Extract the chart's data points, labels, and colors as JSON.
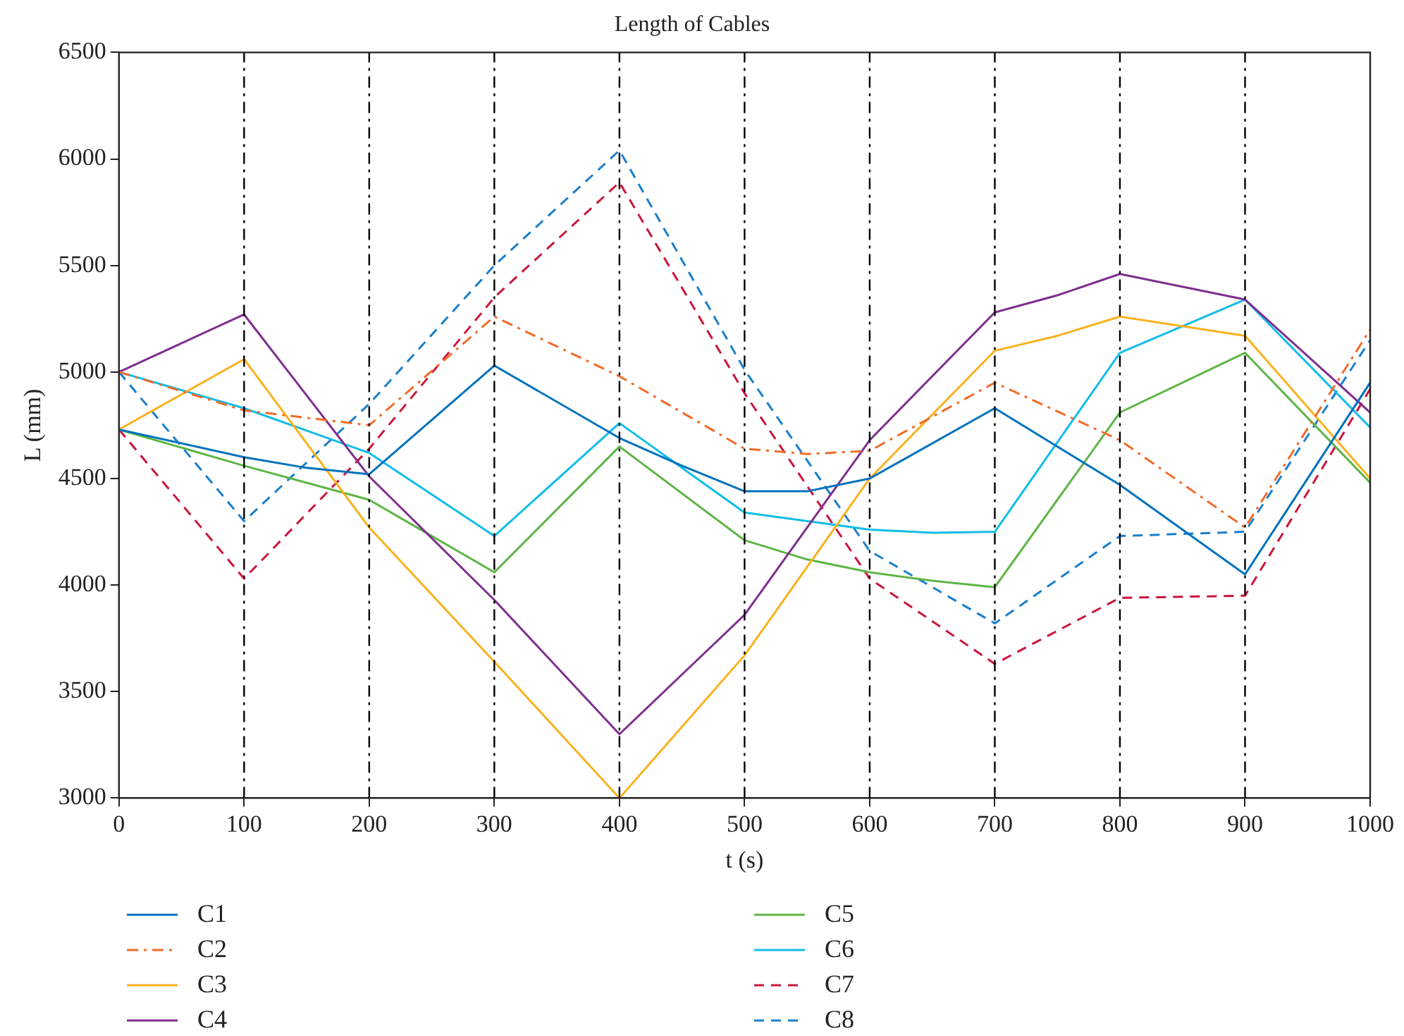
{
  "chart_data": {
    "type": "line",
    "title": "Length of Cables",
    "xlabel": "t (s)",
    "ylabel": "L (mm)",
    "xlim": [
      0,
      1000
    ],
    "xticks": [
      0,
      100,
      200,
      300,
      400,
      500,
      600,
      700,
      800,
      900,
      1000
    ],
    "ylim": [
      3000,
      6500
    ],
    "yticks": [
      3000,
      3500,
      4000,
      4500,
      5000,
      5500,
      6000,
      6500
    ],
    "grid": false,
    "legend": "bottom",
    "marker": "none",
    "ref_lines": [
      {
        "axis": "x",
        "value": 100,
        "color": "#000000",
        "line_style": "dashdot"
      },
      {
        "axis": "x",
        "value": 200,
        "color": "#000000",
        "line_style": "dashdot"
      },
      {
        "axis": "x",
        "value": 300,
        "color": "#000000",
        "line_style": "dashdot"
      },
      {
        "axis": "x",
        "value": 400,
        "color": "#000000",
        "line_style": "dashdot"
      },
      {
        "axis": "x",
        "value": 500,
        "color": "#000000",
        "line_style": "dashdot"
      },
      {
        "axis": "x",
        "value": 600,
        "color": "#000000",
        "line_style": "dashdot"
      },
      {
        "axis": "x",
        "value": 700,
        "color": "#000000",
        "line_style": "dashdot"
      },
      {
        "axis": "x",
        "value": 800,
        "color": "#000000",
        "line_style": "dashdot"
      },
      {
        "axis": "x",
        "value": 900,
        "color": "#000000",
        "line_style": "dashdot"
      }
    ],
    "series": [
      {
        "name": "C1",
        "color": "#0072bd",
        "line_style": "solid",
        "x": [
          0,
          100,
          150,
          200,
          300,
          400,
          450,
          500,
          550,
          600,
          700,
          800,
          900,
          1000
        ],
        "values": [
          4730,
          4600,
          4550,
          4520,
          5030,
          4690,
          4560,
          4440,
          4440,
          4500,
          4830,
          4470,
          4050,
          4950
        ]
      },
      {
        "name": "C2",
        "color": "#f26b2a",
        "line_style": "dashdot",
        "x": [
          0,
          100,
          200,
          300,
          400,
          500,
          550,
          600,
          700,
          800,
          900,
          1000
        ],
        "values": [
          5000,
          4820,
          4750,
          5260,
          4980,
          4640,
          4615,
          4630,
          4950,
          4680,
          4270,
          5200
        ]
      },
      {
        "name": "C3",
        "color": "#f9b21f",
        "line_style": "solid",
        "x": [
          0,
          100,
          200,
          300,
          400,
          500,
          600,
          700,
          750,
          800,
          900,
          1000
        ],
        "values": [
          4730,
          5060,
          4270,
          3640,
          3000,
          3670,
          4500,
          5100,
          5170,
          5260,
          5170,
          4500
        ]
      },
      {
        "name": "C4",
        "color": "#7e2f8e",
        "line_style": "solid",
        "x": [
          0,
          100,
          200,
          300,
          400,
          500,
          600,
          700,
          750,
          800,
          900,
          1000
        ],
        "values": [
          5000,
          5270,
          4510,
          3930,
          3300,
          3860,
          4680,
          5280,
          5360,
          5460,
          5340,
          4810
        ]
      },
      {
        "name": "C5",
        "color": "#5cb545",
        "line_style": "solid",
        "x": [
          0,
          100,
          200,
          250,
          300,
          400,
          500,
          550,
          600,
          650,
          700,
          800,
          900,
          1000
        ],
        "values": [
          4730,
          4560,
          4400,
          4230,
          4060,
          4650,
          4210,
          4120,
          4060,
          4020,
          3990,
          4810,
          5090,
          4480
        ]
      },
      {
        "name": "C6",
        "color": "#12bde8",
        "line_style": "solid",
        "x": [
          0,
          100,
          200,
          300,
          400,
          500,
          600,
          650,
          700,
          800,
          900,
          1000
        ],
        "values": [
          5000,
          4830,
          4620,
          4230,
          4760,
          4340,
          4260,
          4245,
          4250,
          5090,
          5340,
          4740
        ]
      },
      {
        "name": "C7",
        "color": "#c8163c",
        "line_style": "dashed",
        "x": [
          0,
          100,
          200,
          300,
          400,
          500,
          600,
          700,
          800,
          900,
          1000
        ],
        "values": [
          4730,
          4030,
          4640,
          5350,
          5890,
          4900,
          4030,
          3630,
          3940,
          3950,
          4920
        ]
      },
      {
        "name": "C8",
        "color": "#1a7fcc",
        "line_style": "dashed",
        "x": [
          0,
          100,
          200,
          300,
          400,
          500,
          600,
          700,
          800,
          900,
          1000
        ],
        "values": [
          5000,
          4300,
          4850,
          5500,
          6040,
          5010,
          4160,
          3820,
          4230,
          4250,
          5150
        ]
      }
    ]
  }
}
